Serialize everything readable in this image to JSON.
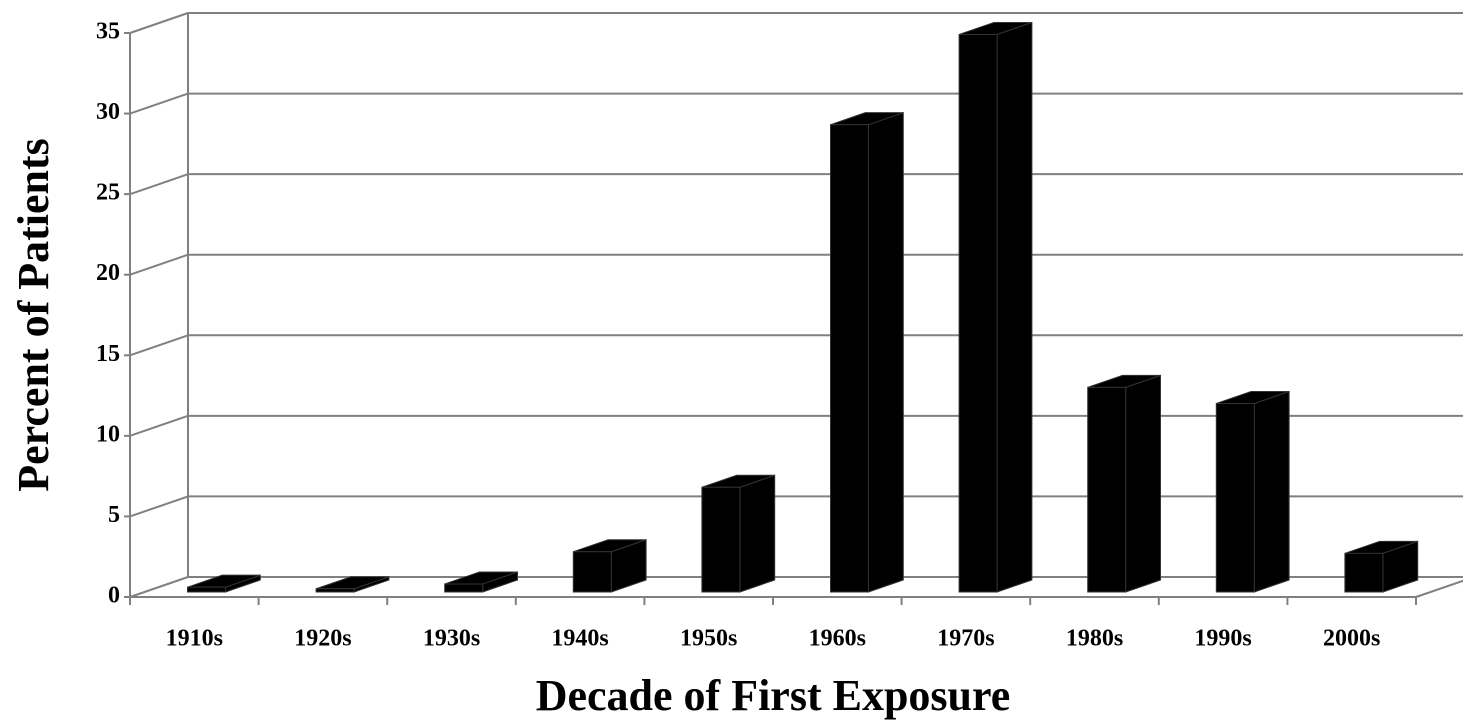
{
  "chart_data": {
    "type": "bar3d",
    "x_label": "Decade of First Exposure",
    "y_label": "Percent of Patients",
    "categories": [
      "1910s",
      "1920s",
      "1930s",
      "1940s",
      "1950s",
      "1960s",
      "1970s",
      "1980s",
      "1990s",
      "2000s"
    ],
    "values": [
      0.3,
      0.2,
      0.5,
      2.5,
      6.5,
      29,
      34.6,
      12.7,
      11.7,
      2.4
    ],
    "color": "#000000",
    "ylim": [
      0,
      35
    ],
    "yticks": [
      0,
      5,
      10,
      15,
      20,
      25,
      30,
      35
    ],
    "grid": true
  }
}
